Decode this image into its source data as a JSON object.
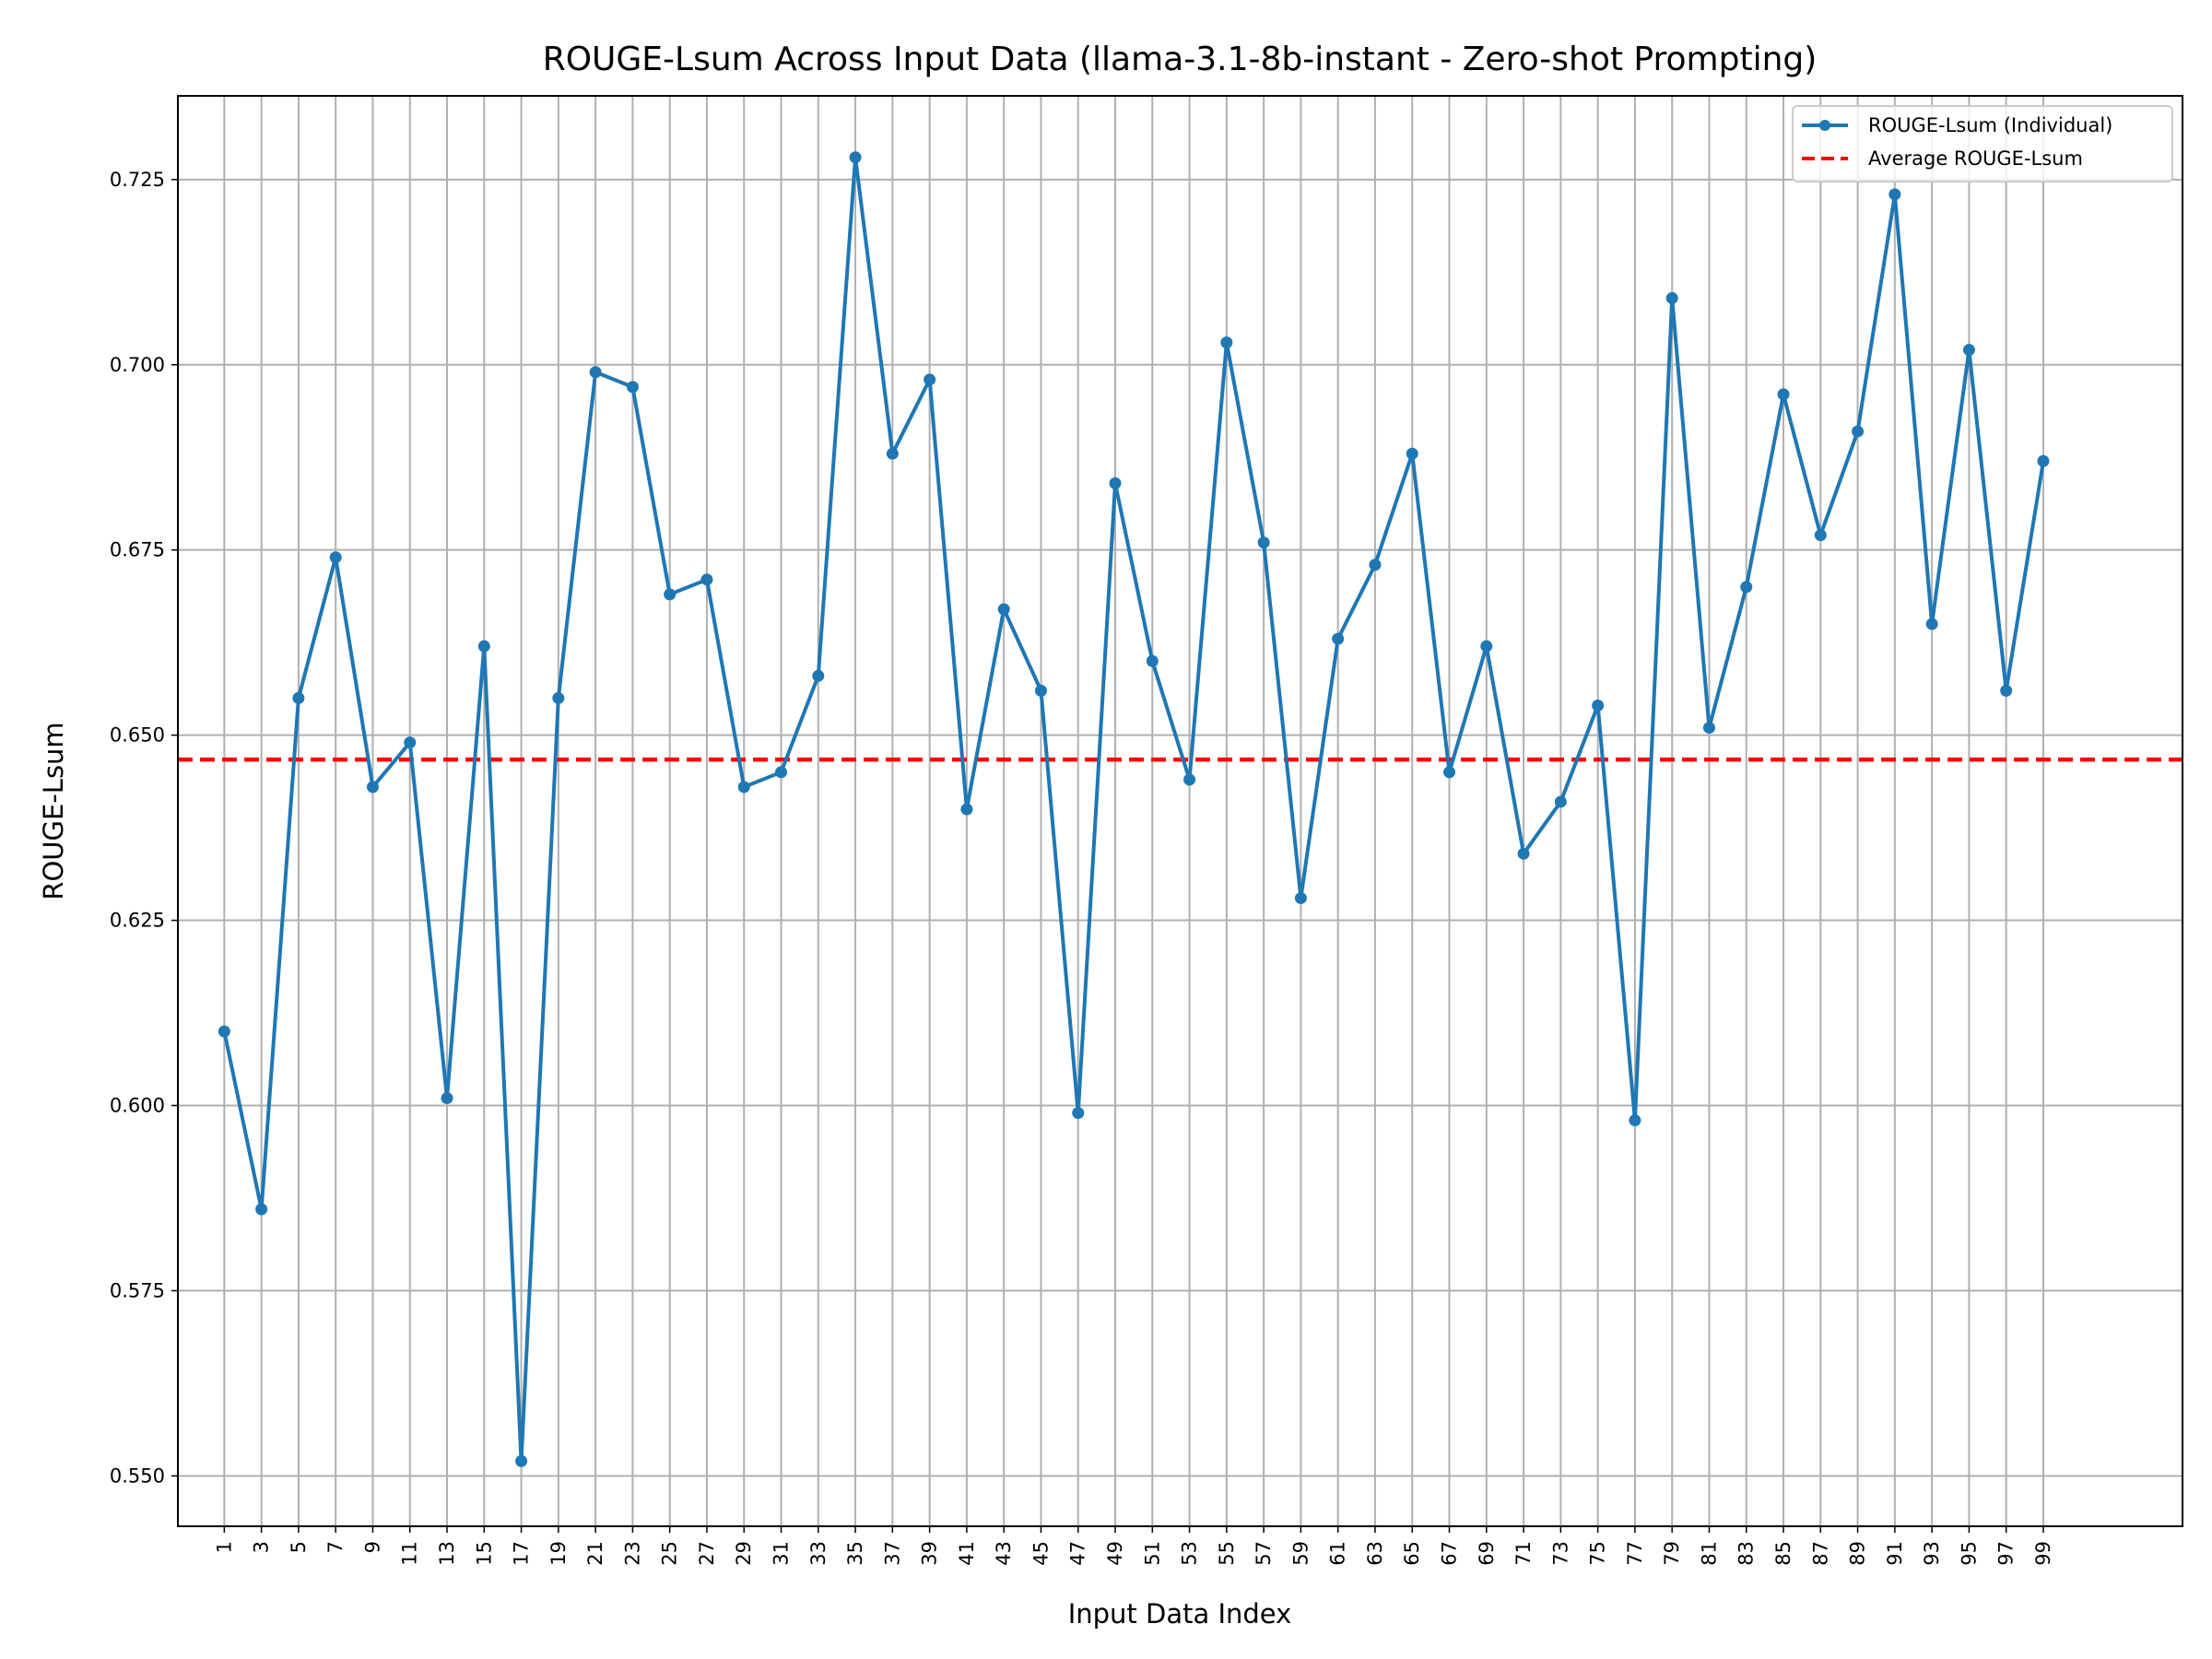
{
  "chart_data": {
    "type": "line",
    "title": "ROUGE-Lsum Across Input Data (llama-3.1-8b-instant - Zero-shot Prompting)",
    "xlabel": "Input Data Index",
    "ylabel": "ROUGE-Lsum",
    "xlim": [
      -1.5,
      106.5
    ],
    "ylim": [
      0.5432,
      0.7363
    ],
    "x_ticks": [
      1,
      3,
      5,
      7,
      9,
      11,
      13,
      15,
      17,
      19,
      21,
      23,
      25,
      27,
      29,
      31,
      33,
      35,
      37,
      39,
      41,
      43,
      45,
      47,
      49,
      51,
      53,
      55,
      57,
      59,
      61,
      63,
      65,
      67,
      69,
      71,
      73,
      75,
      77,
      79,
      81,
      83,
      85,
      87,
      89,
      91,
      93,
      95,
      97,
      99
    ],
    "y_ticks": [
      0.55,
      0.575,
      0.6,
      0.625,
      0.65,
      0.675,
      0.7,
      0.725
    ],
    "y_tick_labels": [
      "0.550",
      "0.575",
      "0.600",
      "0.625",
      "0.650",
      "0.675",
      "0.700",
      "0.725"
    ],
    "grid": true,
    "legend_position": "top-right",
    "series": [
      {
        "name": "ROUGE-Lsum (Individual)",
        "color": "#1f77b4",
        "style": "solid-line-with-markers",
        "x": [
          1,
          3,
          5,
          7,
          9,
          11,
          13,
          15,
          17,
          19,
          21,
          23,
          25,
          27,
          29,
          31,
          33,
          35,
          37,
          39,
          41,
          43,
          45,
          47,
          49,
          51,
          53,
          55,
          57,
          59,
          61,
          63,
          65,
          67,
          69,
          71,
          73,
          75,
          77,
          79,
          81,
          83,
          85,
          87,
          89,
          91,
          93,
          95,
          97,
          99
        ],
        "values": [
          0.61,
          0.586,
          0.655,
          0.674,
          0.643,
          0.649,
          0.601,
          0.662,
          0.552,
          0.655,
          0.699,
          0.697,
          0.669,
          0.671,
          0.643,
          0.645,
          0.658,
          0.728,
          0.688,
          0.698,
          0.64,
          0.667,
          0.656,
          0.599,
          0.684,
          0.66,
          0.644,
          0.703,
          0.676,
          0.628,
          0.663,
          0.673,
          0.688,
          0.645,
          0.662,
          0.634,
          0.641,
          0.654,
          0.598,
          0.709,
          0.651,
          0.67,
          0.696,
          0.677,
          0.691,
          0.723,
          0.665,
          0.702,
          0.656,
          0.687
        ]
      },
      {
        "name": "Average ROUGE-Lsum",
        "color": "#ff0000",
        "style": "dashed-horizontal-line",
        "values": [
          0.6467
        ]
      }
    ]
  }
}
